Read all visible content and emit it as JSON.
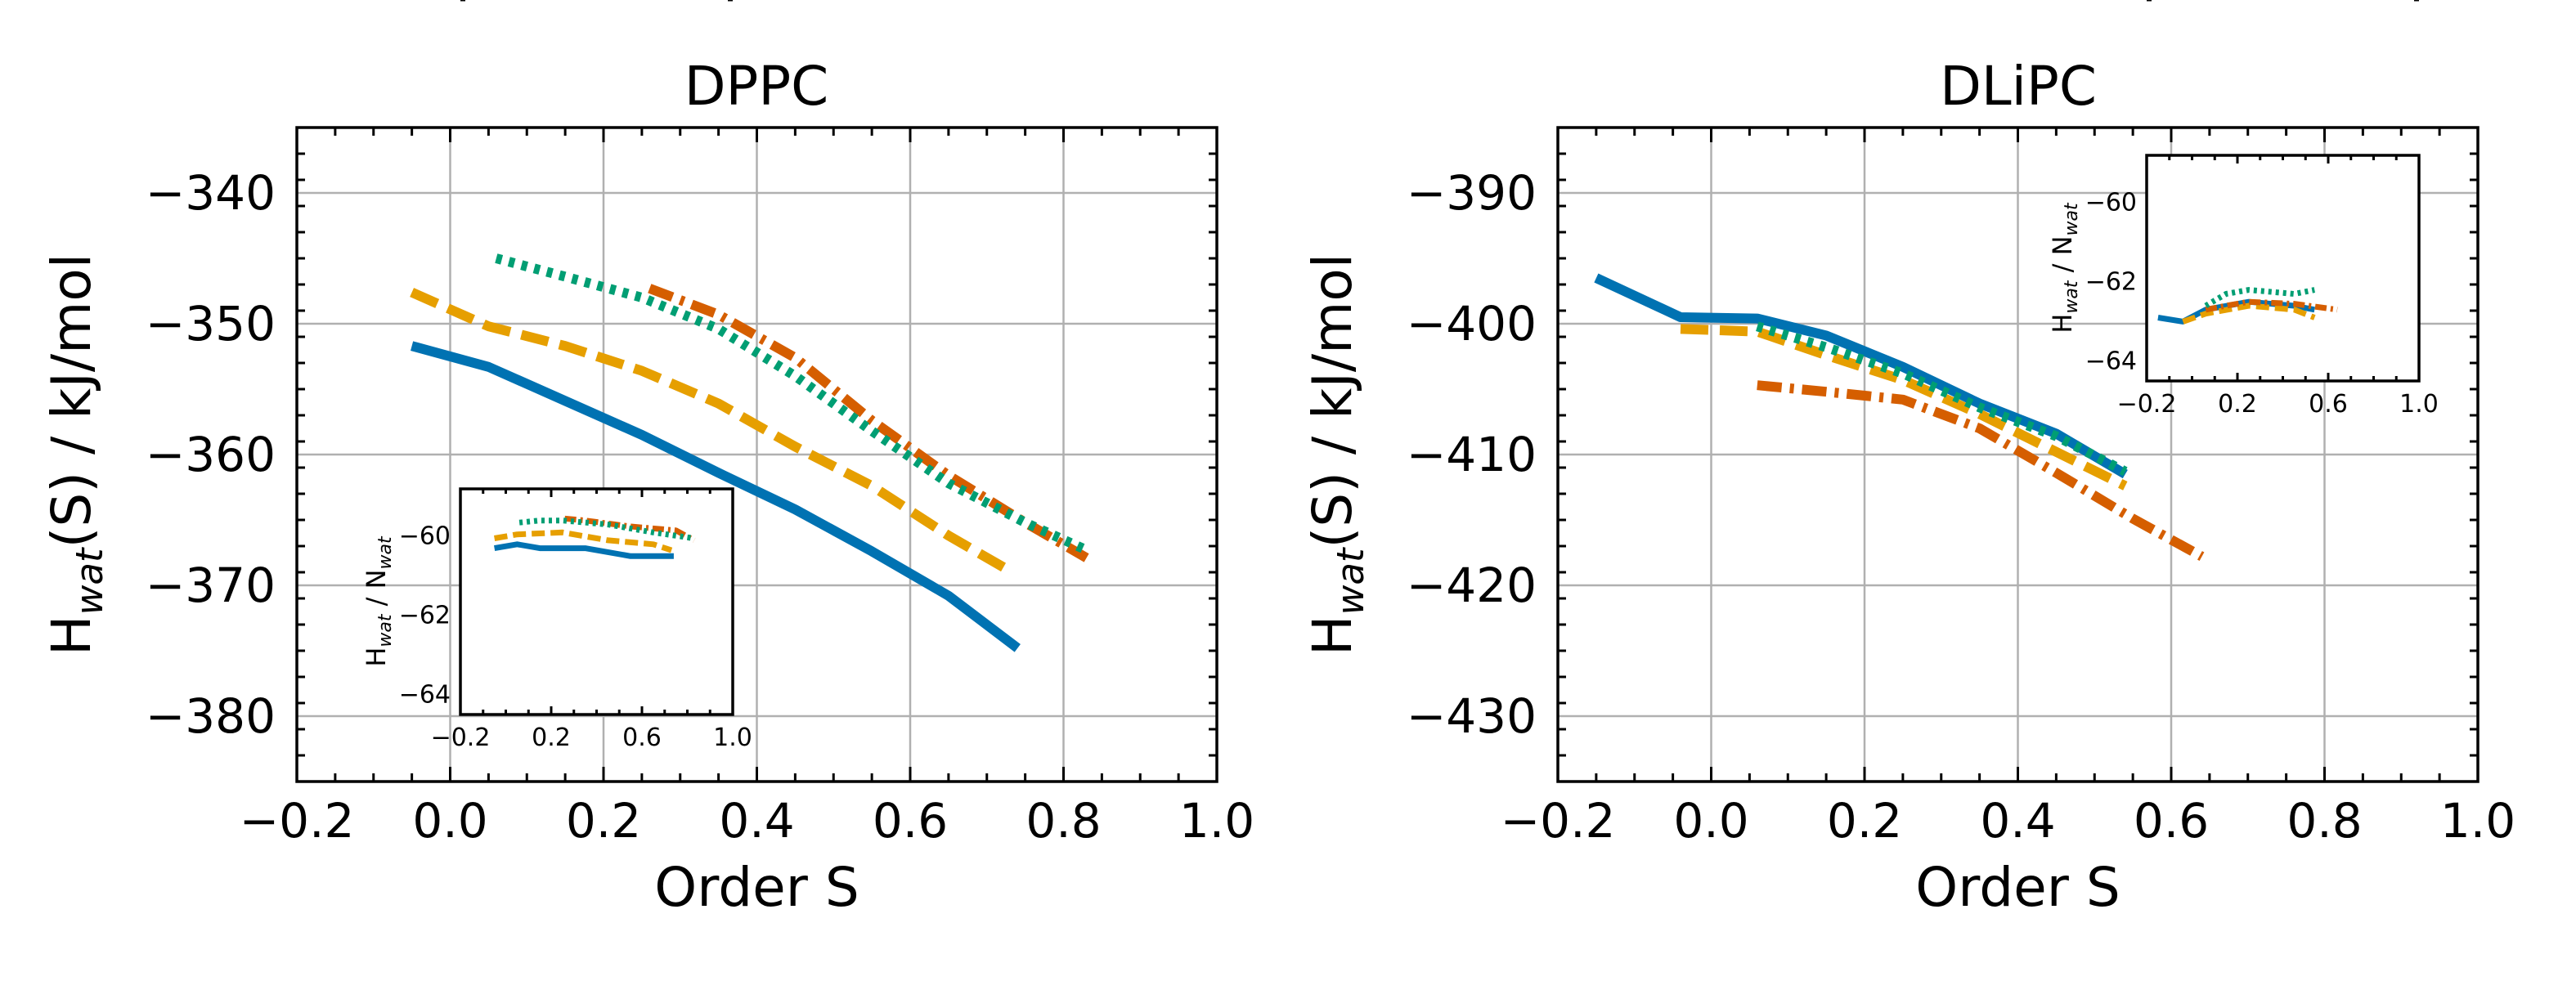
{
  "colors": {
    "blue": "#0072b2",
    "orange": "#e69f00",
    "vermillion": "#d55e00",
    "green": "#009e73"
  },
  "chart_data": [
    {
      "type": "line",
      "title": "DPPC",
      "xlabel": "Order S",
      "ylabel_main": "H",
      "ylabel_sub": "wat",
      "ylabel_rest": "(S) / kJ/mol",
      "xlim": [
        -0.2,
        1.0
      ],
      "ylim": [
        -385,
        -335
      ],
      "xticks": [
        -0.2,
        0.0,
        0.2,
        0.4,
        0.6,
        0.8,
        1.0
      ],
      "xtick_labels": [
        "−0.2",
        "0.0",
        "0.2",
        "0.4",
        "0.6",
        "0.8",
        "1.0"
      ],
      "yticks": [
        -340,
        -350,
        -360,
        -370,
        -380
      ],
      "ytick_labels": [
        "−340",
        "−350",
        "−360",
        "−370",
        "−380"
      ],
      "series": [
        {
          "id": "s1",
          "color": "#0072b2",
          "dash": "solid",
          "x": [
            -0.05,
            0.05,
            0.15,
            0.25,
            0.35,
            0.45,
            0.55,
            0.65,
            0.74
          ],
          "y": [
            -351.7,
            -353.3,
            -355.9,
            -358.5,
            -361.4,
            -364.2,
            -367.4,
            -370.8,
            -374.8
          ]
        },
        {
          "id": "s2",
          "color": "#e69f00",
          "dash": "dashed",
          "x": [
            -0.05,
            0.05,
            0.15,
            0.25,
            0.35,
            0.45,
            0.55,
            0.65,
            0.73
          ],
          "y": [
            -347.6,
            -350.2,
            -351.7,
            -353.6,
            -356.1,
            -359.4,
            -362.4,
            -366.2,
            -368.9
          ]
        },
        {
          "id": "s3",
          "color": "#d55e00",
          "dash": "dashdot",
          "x": [
            0.26,
            0.35,
            0.45,
            0.55,
            0.65,
            0.75,
            0.83
          ],
          "y": [
            -347.3,
            -349.3,
            -352.6,
            -357.4,
            -361.6,
            -365.2,
            -367.9
          ]
        },
        {
          "id": "s4",
          "color": "#009e73",
          "dash": "dotted",
          "x": [
            0.06,
            0.15,
            0.25,
            0.35,
            0.45,
            0.55,
            0.65,
            0.75,
            0.83
          ],
          "y": [
            -345.0,
            -346.4,
            -348.0,
            -350.4,
            -354.0,
            -358.2,
            -362.2,
            -365.2,
            -367.3
          ]
        }
      ],
      "inset": {
        "ylabel_main": "H",
        "ylabel_sub": "wat",
        "ylabel_mid": " / N",
        "ylabel_sub2": "wat",
        "xlim": [
          -0.2,
          1.0
        ],
        "ylim": [
          -64.5,
          -58.8
        ],
        "xticks": [
          -0.2,
          0.2,
          0.6,
          1.0
        ],
        "xtick_labels": [
          "−0.2",
          "0.2",
          "0.6",
          "1.0"
        ],
        "yticks": [
          -60,
          -62,
          -64
        ],
        "ytick_labels": [
          "−60",
          "−62",
          "−64"
        ],
        "series": [
          {
            "id": "i1",
            "color": "#0072b2",
            "dash": "solid",
            "x": [
              -0.05,
              0.05,
              0.15,
              0.35,
              0.55,
              0.74
            ],
            "y": [
              -60.3,
              -60.2,
              -60.3,
              -60.3,
              -60.5,
              -60.5
            ]
          },
          {
            "id": "i2",
            "color": "#e69f00",
            "dash": "dashed",
            "x": [
              -0.05,
              0.05,
              0.25,
              0.45,
              0.65,
              0.73
            ],
            "y": [
              -60.05,
              -59.95,
              -59.9,
              -60.1,
              -60.2,
              -60.35
            ]
          },
          {
            "id": "i3",
            "color": "#d55e00",
            "dash": "dashdot",
            "x": [
              0.26,
              0.35,
              0.55,
              0.75,
              0.83
            ],
            "y": [
              -59.55,
              -59.6,
              -59.75,
              -59.85,
              -60.1
            ]
          },
          {
            "id": "i4",
            "color": "#009e73",
            "dash": "dotted",
            "x": [
              0.06,
              0.15,
              0.25,
              0.45,
              0.65,
              0.83
            ],
            "y": [
              -59.65,
              -59.6,
              -59.6,
              -59.7,
              -59.9,
              -60.05
            ]
          }
        ]
      }
    },
    {
      "type": "line",
      "title": "DLiPC",
      "xlabel": "Order S",
      "ylabel_main": "H",
      "ylabel_sub": "wat",
      "ylabel_rest": "(S) / kJ/mol",
      "xlim": [
        -0.2,
        1.0
      ],
      "ylim": [
        -435,
        -385
      ],
      "xticks": [
        -0.2,
        0.0,
        0.2,
        0.4,
        0.6,
        0.8,
        1.0
      ],
      "xtick_labels": [
        "−0.2",
        "0.0",
        "0.2",
        "0.4",
        "0.6",
        "0.8",
        "1.0"
      ],
      "yticks": [
        -390,
        -400,
        -410,
        -420,
        -430
      ],
      "ytick_labels": [
        "−390",
        "−400",
        "−410",
        "−420",
        "−430"
      ],
      "series": [
        {
          "id": "s1",
          "color": "#0072b2",
          "dash": "solid",
          "x": [
            -0.15,
            -0.04,
            0.06,
            0.15,
            0.25,
            0.35,
            0.45,
            0.54
          ],
          "y": [
            -396.5,
            -399.5,
            -399.6,
            -400.9,
            -403.3,
            -406.1,
            -408.4,
            -411.5
          ]
        },
        {
          "id": "s2",
          "color": "#e69f00",
          "dash": "dashed",
          "x": [
            -0.04,
            0.06,
            0.15,
            0.25,
            0.35,
            0.45,
            0.54
          ],
          "y": [
            -400.4,
            -400.6,
            -402.4,
            -404.3,
            -406.9,
            -409.8,
            -412.4
          ]
        },
        {
          "id": "s3",
          "color": "#d55e00",
          "dash": "dashdot",
          "x": [
            0.06,
            0.15,
            0.25,
            0.35,
            0.45,
            0.55,
            0.64
          ],
          "y": [
            -404.7,
            -405.2,
            -405.8,
            -408.0,
            -411.4,
            -414.9,
            -417.8
          ]
        },
        {
          "id": "s4",
          "color": "#009e73",
          "dash": "dotted",
          "x": [
            0.06,
            0.15,
            0.25,
            0.35,
            0.45,
            0.54
          ],
          "y": [
            -400.2,
            -401.8,
            -403.8,
            -406.4,
            -408.6,
            -411.3
          ]
        }
      ],
      "inset": {
        "ylabel_main": "H",
        "ylabel_sub": "wat",
        "ylabel_mid": " / N",
        "ylabel_sub2": "wat",
        "xlim": [
          -0.2,
          1.0
        ],
        "ylim": [
          -64.5,
          -58.8
        ],
        "xticks": [
          -0.2,
          0.2,
          0.6,
          1.0
        ],
        "xtick_labels": [
          "−0.2",
          "0.2",
          "0.6",
          "1.0"
        ],
        "yticks": [
          -60,
          -62,
          -64
        ],
        "ytick_labels": [
          "−60",
          "−62",
          "−64"
        ],
        "series": [
          {
            "id": "i1",
            "color": "#0072b2",
            "dash": "solid",
            "x": [
              -0.15,
              -0.04,
              0.06,
              0.25,
              0.45,
              0.54
            ],
            "y": [
              -62.9,
              -63.0,
              -62.7,
              -62.5,
              -62.6,
              -62.7
            ]
          },
          {
            "id": "i2",
            "color": "#e69f00",
            "dash": "dashed",
            "x": [
              -0.04,
              0.06,
              0.25,
              0.45,
              0.54
            ],
            "y": [
              -63.0,
              -62.8,
              -62.6,
              -62.7,
              -62.9
            ]
          },
          {
            "id": "i3",
            "color": "#d55e00",
            "dash": "dashdot",
            "x": [
              0.06,
              0.15,
              0.25,
              0.45,
              0.64
            ],
            "y": [
              -62.7,
              -62.6,
              -62.5,
              -62.55,
              -62.7
            ]
          },
          {
            "id": "i4",
            "color": "#009e73",
            "dash": "dotted",
            "x": [
              0.06,
              0.15,
              0.25,
              0.45,
              0.54
            ],
            "y": [
              -62.6,
              -62.3,
              -62.2,
              -62.3,
              -62.2
            ]
          }
        ]
      }
    }
  ]
}
